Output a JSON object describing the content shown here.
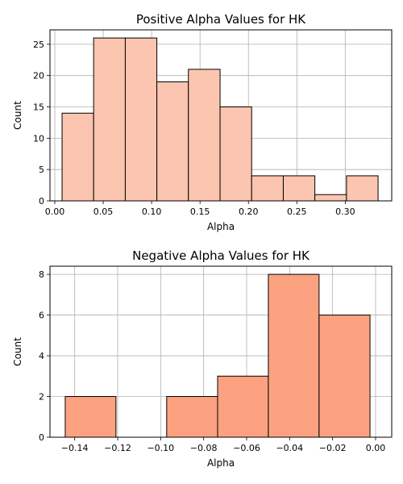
{
  "chart_data": [
    {
      "type": "bar",
      "title": "Positive Alpha Values for HK",
      "xlabel": "Alpha",
      "ylabel": "Count",
      "xlim": [
        -0.005,
        0.348
      ],
      "ylim": [
        0,
        27.3
      ],
      "xticks": [
        0.0,
        0.05,
        0.1,
        0.15,
        0.2,
        0.25,
        0.3
      ],
      "xtick_labels": [
        "0.00",
        "0.05",
        "0.10",
        "0.15",
        "0.20",
        "0.25",
        "0.30"
      ],
      "yticks": [
        0,
        5,
        10,
        15,
        20,
        25
      ],
      "ytick_labels": [
        "0",
        "5",
        "10",
        "15",
        "20",
        "25"
      ],
      "bin_edges": [
        0.0075,
        0.0401,
        0.0728,
        0.1054,
        0.138,
        0.1707,
        0.2033,
        0.236,
        0.2686,
        0.3013,
        0.3339
      ],
      "values": [
        14,
        26,
        26,
        19,
        21,
        15,
        4,
        4,
        1,
        4
      ],
      "bar_color": "#fcc5b0",
      "edge_color": "#000000",
      "grid": true
    },
    {
      "type": "bar",
      "title": "Negative Alpha Values for HK",
      "xlabel": "Alpha",
      "ylabel": "Count",
      "xlim": [
        -0.1515,
        0.0075
      ],
      "ylim": [
        0,
        8.4
      ],
      "xticks": [
        -0.14,
        -0.12,
        -0.1,
        -0.08,
        -0.06,
        -0.04,
        -0.02,
        0.0
      ],
      "xtick_labels": [
        "−0.14",
        "−0.12",
        "−0.10",
        "−0.08",
        "−0.06",
        "−0.04",
        "−0.02",
        "0.00"
      ],
      "yticks": [
        0,
        2,
        4,
        6,
        8
      ],
      "ytick_labels": [
        "0",
        "2",
        "4",
        "6",
        "8"
      ],
      "bin_edges": [
        -0.1444,
        -0.1208,
        -0.0972,
        -0.0735,
        -0.0499,
        -0.0263,
        -0.0026
      ],
      "values": [
        2,
        0,
        2,
        3,
        8,
        6
      ],
      "bar_color": "#fca281",
      "edge_color": "#000000",
      "grid": true
    }
  ]
}
